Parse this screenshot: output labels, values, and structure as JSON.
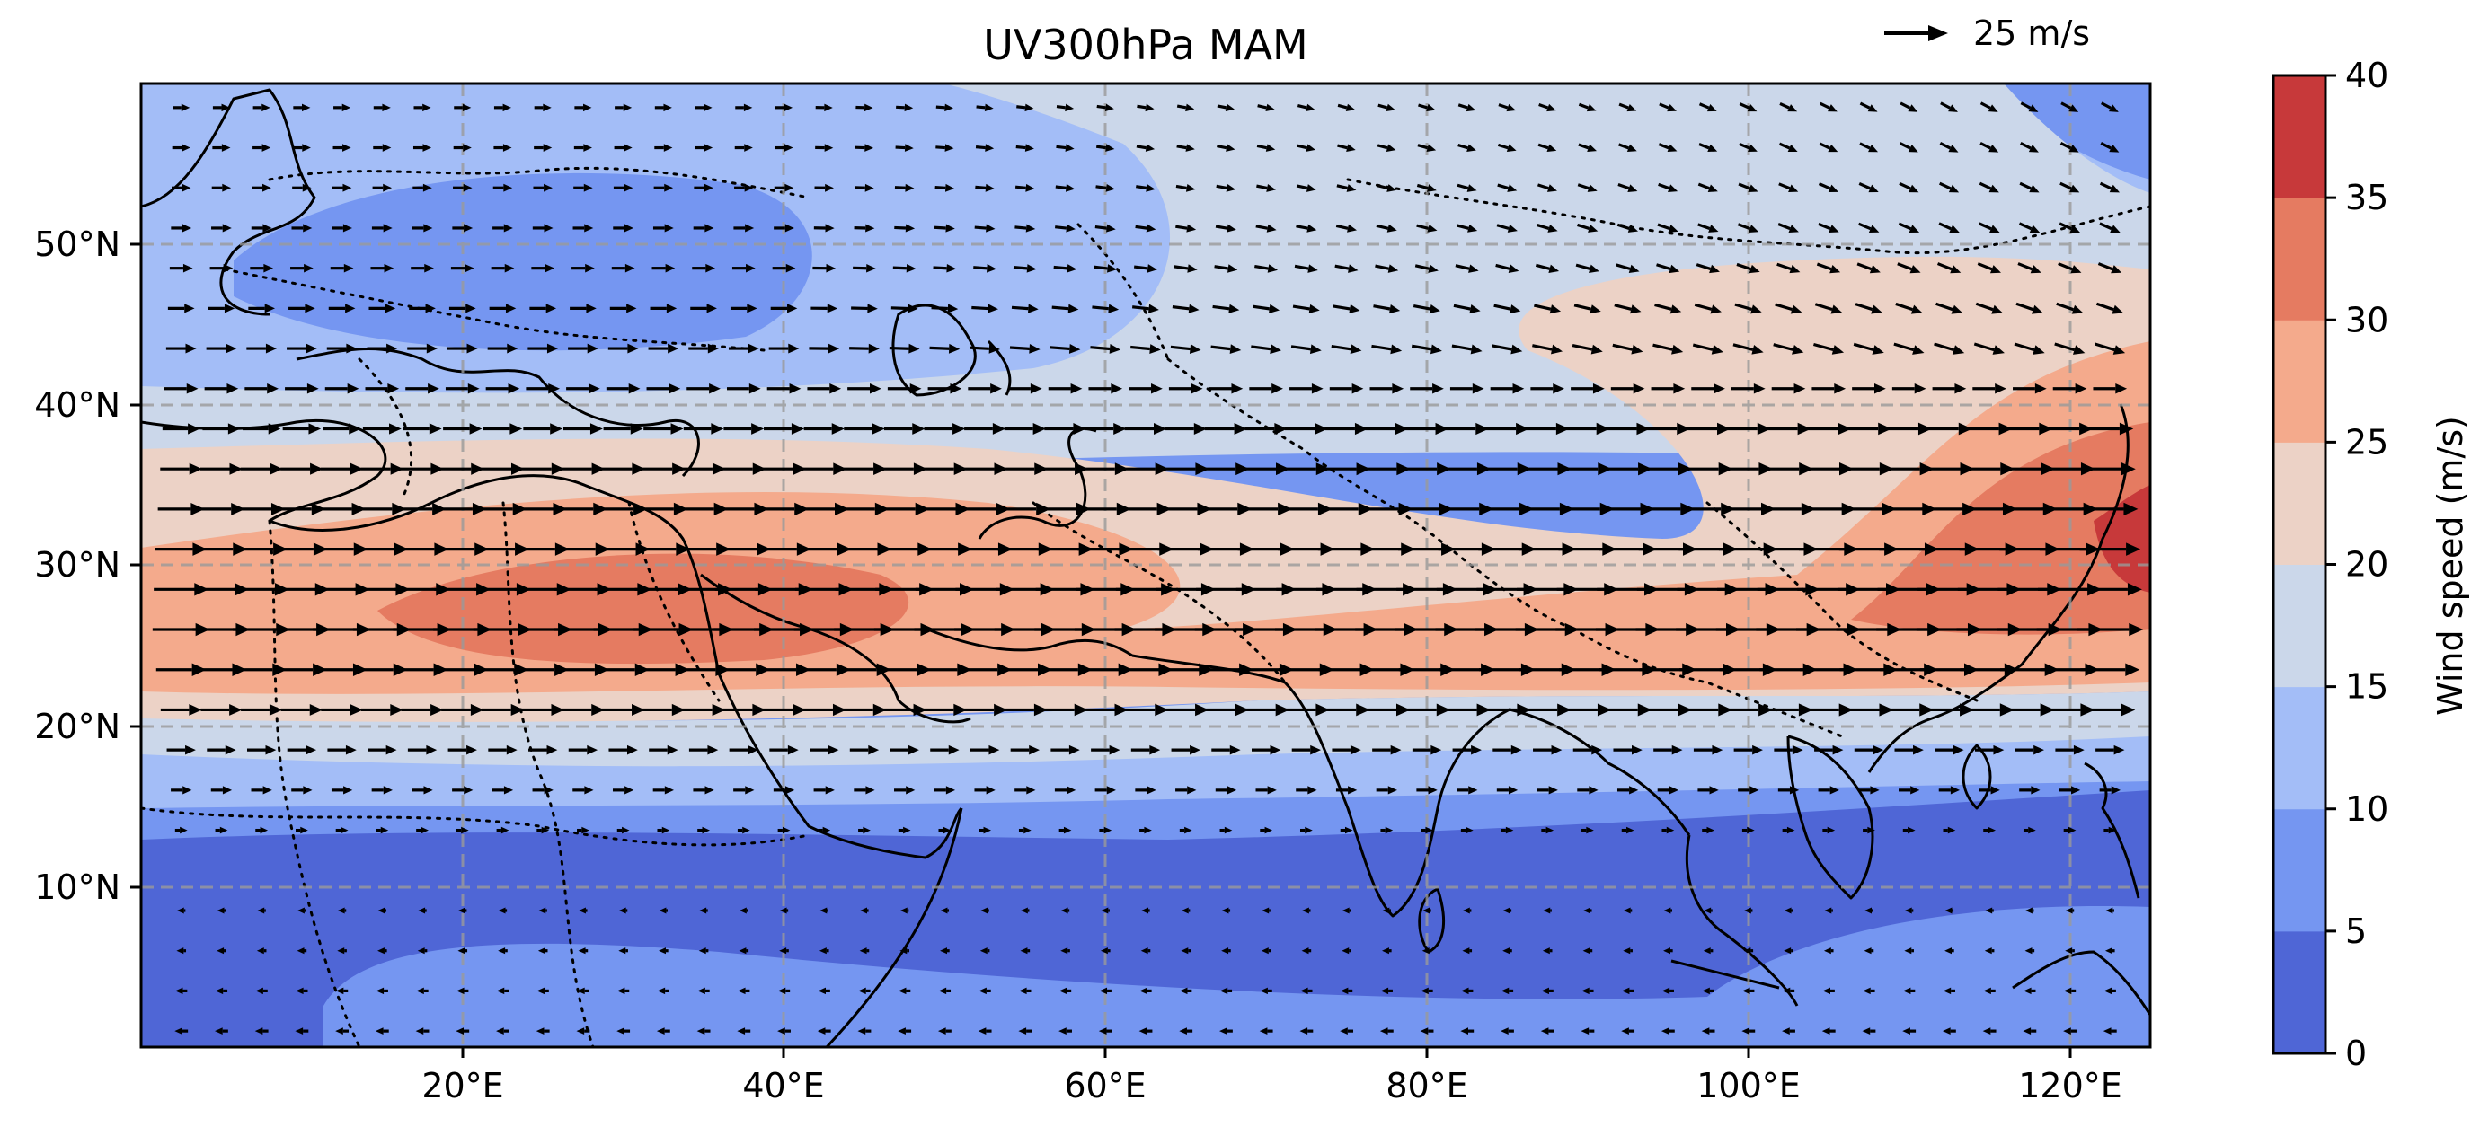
{
  "title": "UV300hPa MAM",
  "quiver_key": {
    "label": "25 m/s",
    "speed": 25
  },
  "x_ticks": [
    "20°E",
    "40°E",
    "60°E",
    "80°E",
    "100°E",
    "120°E"
  ],
  "y_ticks": [
    "10°N",
    "20°N",
    "30°N",
    "40°N",
    "50°N"
  ],
  "colorbar": {
    "label": "Wind speed (m/s)",
    "ticks": [
      "0",
      "5",
      "10",
      "15",
      "20",
      "25",
      "30",
      "35",
      "40"
    ],
    "levels": [
      0,
      5,
      10,
      15,
      20,
      25,
      30,
      35,
      40
    ],
    "colors": [
      "#4f66d6",
      "#7596f1",
      "#a3bdf7",
      "#cbd7ea",
      "#ecd2c6",
      "#f4aa8c",
      "#e57b61",
      "#c7393a"
    ]
  },
  "chart_data": {
    "type": "filled-contour with wind vectors",
    "variable": "Wind speed (m/s)",
    "level": "300 hPa",
    "season": "MAM",
    "lon_range": [
      0,
      125
    ],
    "lat_range": [
      0,
      60
    ],
    "grid": true,
    "colorbar_placement": "right",
    "zonal_mean_speed_by_lat": [
      {
        "lat": 2,
        "speed": 7,
        "dir": "westward"
      },
      {
        "lat": 6,
        "speed": 5,
        "dir": "westward"
      },
      {
        "lat": 10,
        "speed": 4,
        "dir": "westward"
      },
      {
        "lat": 14,
        "speed": 8,
        "dir": "eastward"
      },
      {
        "lat": 18,
        "speed": 14,
        "dir": "eastward"
      },
      {
        "lat": 22,
        "speed": 24,
        "dir": "eastward"
      },
      {
        "lat": 26,
        "speed": 30,
        "dir": "eastward"
      },
      {
        "lat": 30,
        "speed": 28,
        "dir": "eastward"
      },
      {
        "lat": 34,
        "speed": 24,
        "dir": "eastward"
      },
      {
        "lat": 38,
        "speed": 20,
        "dir": "eastward"
      },
      {
        "lat": 42,
        "speed": 17,
        "dir": "eastward"
      },
      {
        "lat": 46,
        "speed": 14,
        "dir": "eastward"
      },
      {
        "lat": 50,
        "speed": 11,
        "dir": "eastward"
      },
      {
        "lat": 54,
        "speed": 10,
        "dir": "eastward"
      },
      {
        "lat": 58,
        "speed": 9,
        "dir": "eastward"
      }
    ],
    "maxima": [
      {
        "region": "East China coast ~122°E, 30°N",
        "speed": 37
      },
      {
        "region": "North Africa / Arabia ~25–45°E, 27°N",
        "speed": 32
      }
    ]
  }
}
